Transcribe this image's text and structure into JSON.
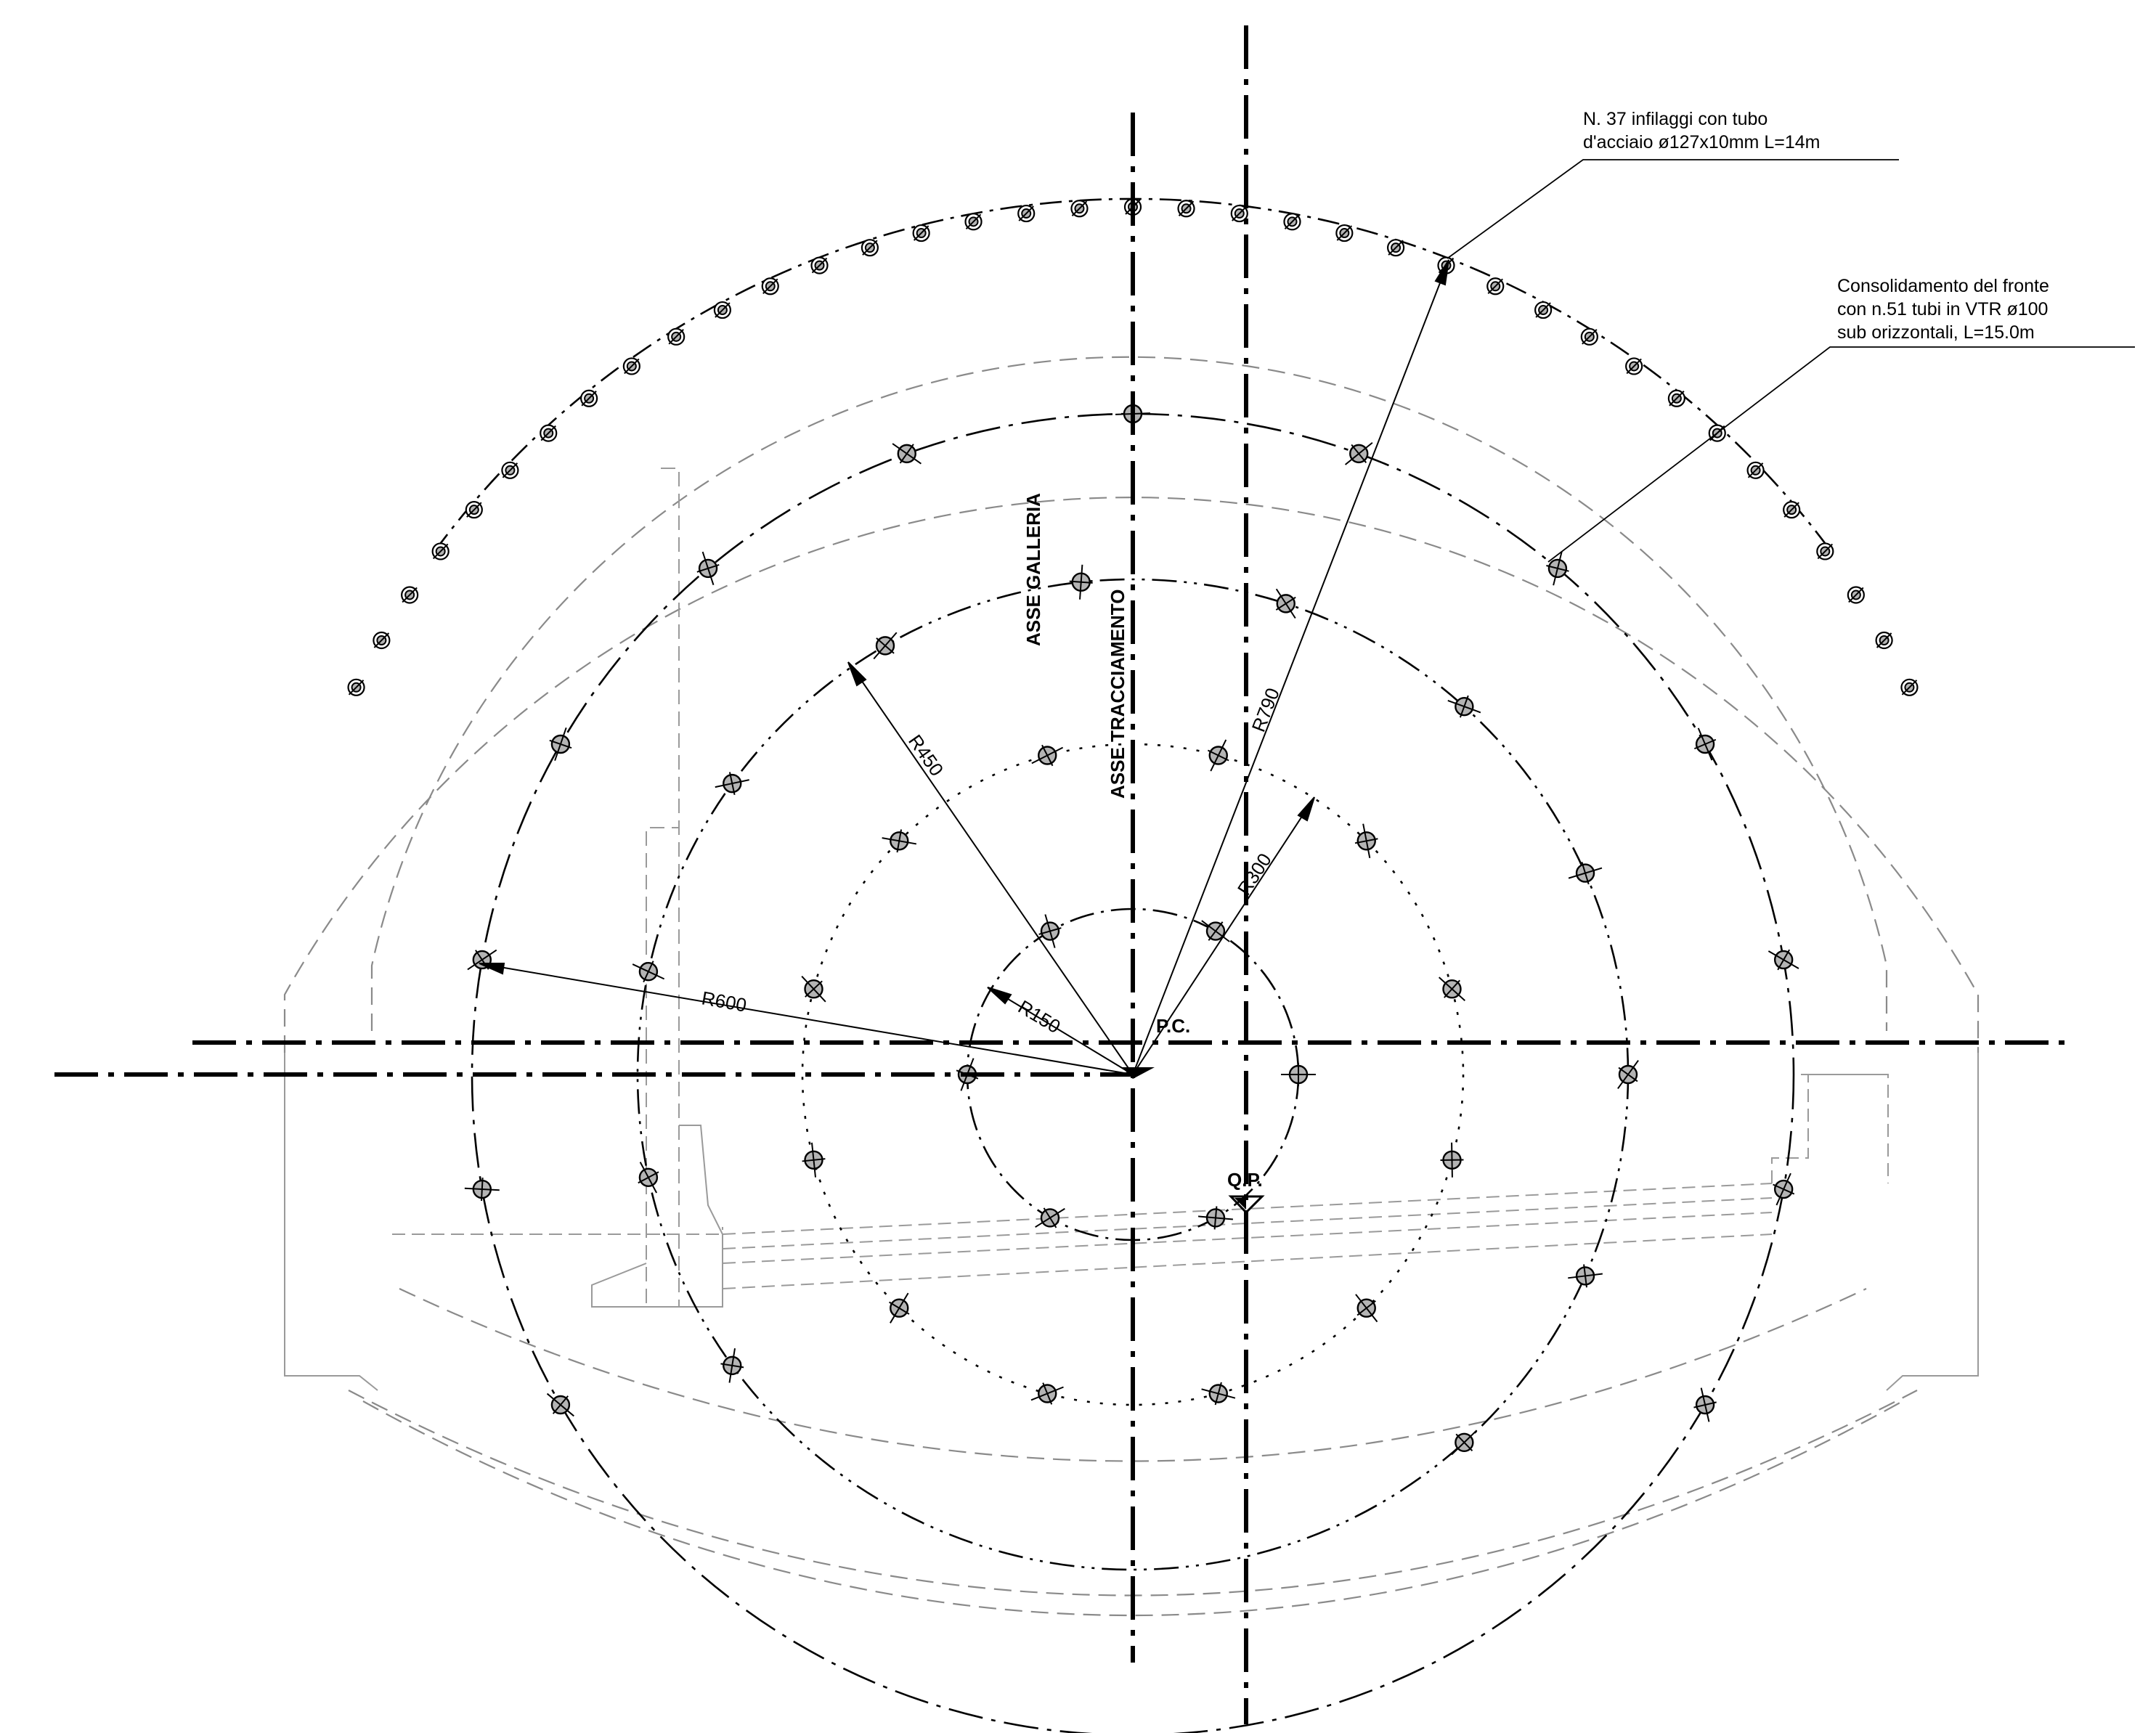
{
  "annotations": {
    "steel_pipes_line1": "N. 37 infilaggi con tubo",
    "steel_pipes_line2": "d'acciaio ø127x10mm L=14m",
    "vtr_line1": "Consolidamento del fronte",
    "vtr_line2": "con n.51 tubi in VTR ø100",
    "vtr_line3": "sub orizzontali, L=15.0m"
  },
  "axis_labels": {
    "asse_galleria": "ASSE GALLERIA",
    "asse_tracciamento": "ASSE TRACCIAMENTO",
    "pc": "P.C.",
    "qp": "Q.P."
  },
  "radii": {
    "r150": "R150",
    "r300": "R300",
    "r450": "R450",
    "r600": "R600",
    "r790": "R790"
  },
  "counts": {
    "steel_pipes": 37,
    "vtr_tubes": 51
  },
  "colors": {
    "line": "#000000",
    "light_line": "#9a9a9a",
    "tube_fill": "#b4b4b4"
  }
}
